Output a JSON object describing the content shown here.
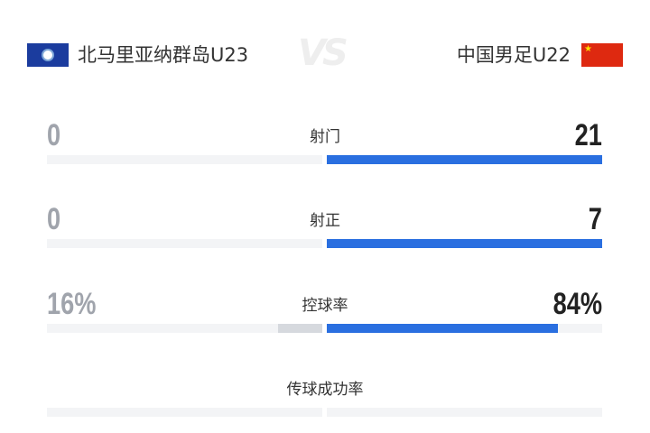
{
  "header": {
    "home_team": "北马里亚纳群岛U23",
    "away_team": "中国男足U22",
    "vs": "VS",
    "home_flag": "northern-mariana-islands-flag",
    "away_flag": "china-flag"
  },
  "colors": {
    "away_bar": "#2a6fe0",
    "home_bar": "#d6d9de",
    "track": "#f3f4f6"
  },
  "stats": [
    {
      "label": "射门",
      "home": "0",
      "away": "21",
      "home_share": 0,
      "away_share": 100
    },
    {
      "label": "射正",
      "home": "0",
      "away": "7",
      "home_share": 0,
      "away_share": 100
    },
    {
      "label": "控球率",
      "home": "16%",
      "away": "84%",
      "home_share": 16,
      "away_share": 84
    },
    {
      "label": "传球成功率",
      "home": "",
      "away": "",
      "home_share": 0,
      "away_share": 0
    }
  ]
}
